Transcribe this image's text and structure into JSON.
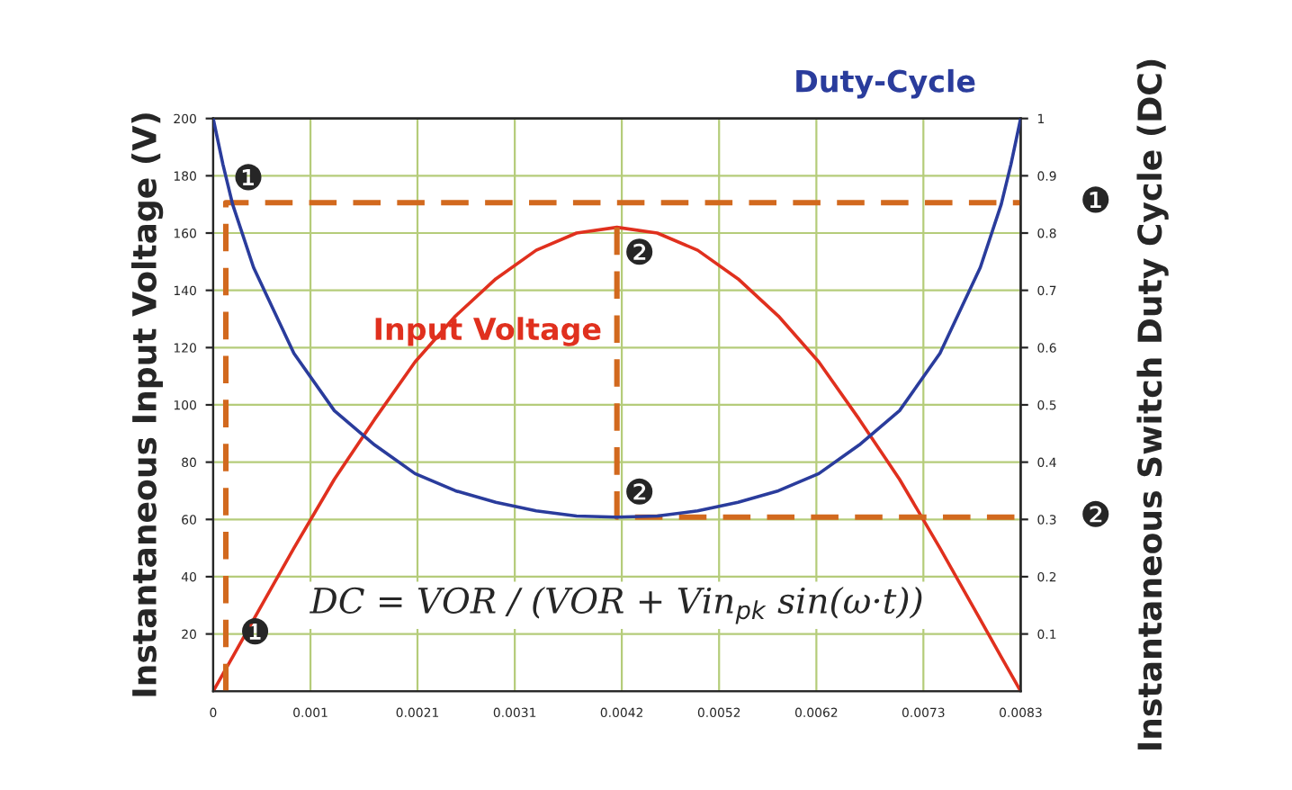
{
  "chart_data": {
    "type": "line",
    "xlabel": null,
    "ylabel": "Instantaneous Input Voltage (V)",
    "y2label": "Instantaneous Switch Duty Cycle (DC)",
    "x": [
      0,
      0.0001,
      0.0002,
      0.000415,
      0.00083,
      0.001245,
      0.00166,
      0.002075,
      0.00249,
      0.002905,
      0.00332,
      0.003735,
      0.00415,
      0.004565,
      0.00498,
      0.005395,
      0.00581,
      0.006225,
      0.00664,
      0.007055,
      0.00747,
      0.007885,
      0.0081,
      0.0082,
      0.0083
    ],
    "series": [
      {
        "name": "Input Voltage",
        "color": "#e0301e",
        "values": [
          0,
          6,
          12,
          25,
          50,
          74,
          95,
          115,
          131,
          144,
          154,
          160,
          162,
          160,
          154,
          144,
          131,
          115,
          95,
          74,
          50,
          25,
          12,
          6,
          0
        ]
      },
      {
        "name": "Duty-Cycle",
        "color": "#2a3c9c",
        "axis": "y2",
        "values": [
          1,
          0.92,
          0.85,
          0.74,
          0.59,
          0.49,
          0.43,
          0.38,
          0.35,
          0.33,
          0.315,
          0.306,
          0.304,
          0.306,
          0.315,
          0.33,
          0.35,
          0.38,
          0.43,
          0.49,
          0.59,
          0.74,
          0.85,
          0.92,
          1
        ]
      },
      {
        "color": "#d2691e",
        "line_style": "dashed",
        "axis": "y2",
        "x": [
          0.00013,
          0.00013,
          0.0083
        ],
        "values": [
          0,
          0.853,
          0.853
        ]
      },
      {
        "color": "#d2691e",
        "line_style": "dashed",
        "axis": "y2",
        "x": [
          0.00415,
          0.00415,
          0.0083
        ],
        "values": [
          0.81,
          0.304,
          0.304
        ]
      }
    ],
    "xlim": [
      0,
      0.0083
    ],
    "xticks": [
      0,
      0.001,
      0.0021,
      0.0031,
      0.0042,
      0.0052,
      0.0062,
      0.0073,
      0.0083
    ],
    "ylim": [
      0,
      200
    ],
    "yticks": [
      20,
      40,
      60,
      80,
      100,
      120,
      140,
      160,
      180,
      200
    ],
    "y2lim": [
      0,
      1
    ],
    "y2ticks": [
      0.1,
      0.2,
      0.3,
      0.4,
      0.5,
      0.6,
      0.7,
      0.8,
      0.9,
      1
    ],
    "grid": true,
    "legend": false,
    "marker": "none",
    "line_style": "solid",
    "annotations": [
      {
        "text": "❶",
        "x": 0.00013,
        "y": 170.6
      },
      {
        "text": "❶",
        "x": 0.0002,
        "y": 12
      },
      {
        "text": "❷",
        "x": 0.00415,
        "y": 162
      },
      {
        "text": "❷",
        "x": 0.00415,
        "y": 60.8
      },
      {
        "text": "❶",
        "x": 0.0083,
        "y": 170.6
      },
      {
        "text": "❷",
        "x": 0.0083,
        "y": 60.8
      },
      "DC = VOR / (VOR + Vin$_{pk}$ sin(ω·t))"
    ]
  }
}
